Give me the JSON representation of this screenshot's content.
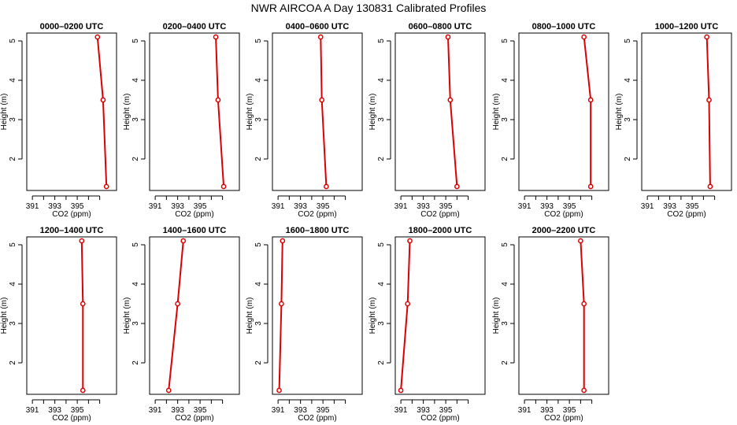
{
  "title": "NWR AIRCOA A   Day 130831   Calibrated Profiles",
  "chart_data": {
    "type": "line",
    "xlabel": "CO2 (ppm)",
    "ylabel": "Height (m)",
    "xlim": [
      390.5,
      398.5
    ],
    "ylim": [
      1.2,
      5.2
    ],
    "xticks": [
      391,
      392,
      393,
      394,
      395,
      396,
      397
    ],
    "xtick_labels": [
      "391",
      "",
      "393",
      "",
      "395",
      "",
      ""
    ],
    "yticks": [
      2,
      3,
      4,
      5
    ],
    "heights": [
      5.1,
      3.5,
      1.3
    ],
    "panels": [
      {
        "title": "0000–0200 UTC",
        "co2": [
          396.8,
          397.3,
          397.6
        ]
      },
      {
        "title": "0200–0400 UTC",
        "co2": [
          396.4,
          396.6,
          397.1
        ]
      },
      {
        "title": "0400–0600 UTC",
        "co2": [
          394.8,
          394.9,
          395.3
        ]
      },
      {
        "title": "0600–0800 UTC",
        "co2": [
          395.2,
          395.4,
          396.0
        ]
      },
      {
        "title": "0800–1000 UTC",
        "co2": [
          396.3,
          396.9,
          396.9
        ]
      },
      {
        "title": "1000–1200 UTC",
        "co2": [
          396.3,
          396.5,
          396.6
        ]
      },
      {
        "title": "1200–1400 UTC",
        "co2": [
          395.4,
          395.5,
          395.5
        ]
      },
      {
        "title": "1400–1600 UTC",
        "co2": [
          393.5,
          393.0,
          392.2
        ]
      },
      {
        "title": "1600–1800 UTC",
        "co2": [
          391.4,
          391.3,
          391.1
        ]
      },
      {
        "title": "1800–2000 UTC",
        "co2": [
          391.8,
          391.6,
          391.0
        ]
      },
      {
        "title": "2000–2200 UTC",
        "co2": [
          396.0,
          396.3,
          396.3
        ]
      }
    ]
  }
}
